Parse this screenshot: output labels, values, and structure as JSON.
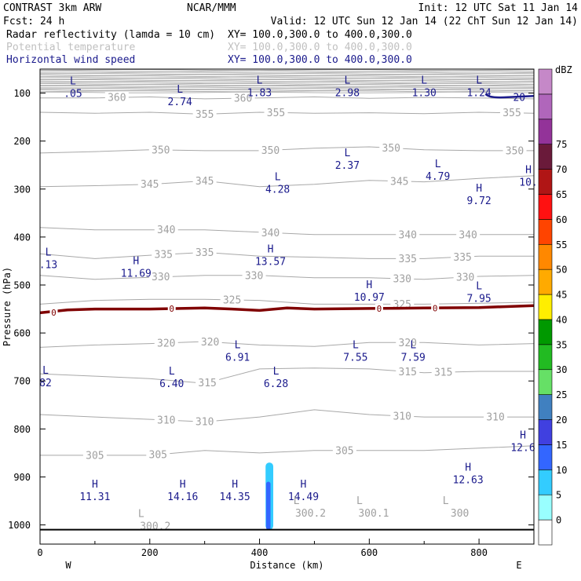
{
  "header": {
    "line1": [
      {
        "key": "model",
        "text": "CONTRAST  3km ARW"
      },
      {
        "key": "org",
        "text": "NCAR/MMM"
      },
      {
        "key": "init",
        "text": "Init: 12 UTC Sat 11 Jan 14"
      }
    ],
    "line2": [
      {
        "key": "fcst",
        "text": "Fcst:   24 h"
      },
      {
        "key": "valid",
        "text": "Valid: 12 UTC Sun 12 Jan 14 (22 ChT Sun 12 Jan 14)"
      }
    ],
    "fields": [
      {
        "name": "Radar reflectivity (lamda = 10 cm)",
        "xy": "XY= 100.0,300.0 to 400.0,300.0",
        "color": "#000000"
      },
      {
        "name": "Potential temperature",
        "xy": "XY= 100.0,300.0 to 400.0,300.0",
        "color": "#c0c0c0"
      },
      {
        "name": "Horizontal wind speed",
        "xy": "XY= 100.0,300.0 to 400.0,300.0",
        "color": "#1a1a8c"
      }
    ]
  },
  "chart_data": {
    "type": "cross-section",
    "xlabel": "Distance (km)",
    "ylabel": "Pressure (hPa)",
    "xlim": [
      0,
      900
    ],
    "ylim": [
      1040,
      50
    ],
    "xticks": [
      0,
      200,
      400,
      600,
      800
    ],
    "yticks": [
      100,
      200,
      300,
      400,
      500,
      600,
      700,
      800,
      900,
      1000
    ],
    "side_labels": {
      "left": "W",
      "right": "E"
    },
    "theta_lines": [
      {
        "value": 360,
        "points": [
          [
            0,
            110
          ],
          [
            100,
            110
          ],
          [
            200,
            108
          ],
          [
            300,
            112
          ],
          [
            400,
            110
          ],
          [
            500,
            108
          ],
          [
            600,
            111
          ],
          [
            700,
            109
          ],
          [
            800,
            110
          ],
          [
            900,
            112
          ]
        ]
      },
      {
        "value": 355,
        "points": [
          [
            0,
            140
          ],
          [
            100,
            142
          ],
          [
            200,
            140
          ],
          [
            300,
            144
          ],
          [
            400,
            140
          ],
          [
            500,
            142
          ],
          [
            600,
            141
          ],
          [
            700,
            143
          ],
          [
            800,
            140
          ],
          [
            900,
            142
          ]
        ]
      },
      {
        "value": 350,
        "points": [
          [
            0,
            225
          ],
          [
            100,
            222
          ],
          [
            200,
            218
          ],
          [
            300,
            220
          ],
          [
            400,
            220
          ],
          [
            500,
            215
          ],
          [
            600,
            212
          ],
          [
            700,
            218
          ],
          [
            800,
            220
          ],
          [
            900,
            220
          ]
        ]
      },
      {
        "value": 345,
        "points": [
          [
            0,
            295
          ],
          [
            100,
            293
          ],
          [
            200,
            290
          ],
          [
            300,
            283
          ],
          [
            400,
            295
          ],
          [
            500,
            290
          ],
          [
            600,
            282
          ],
          [
            700,
            285
          ],
          [
            800,
            278
          ],
          [
            900,
            272
          ]
        ]
      },
      {
        "value": 340,
        "points": [
          [
            0,
            380
          ],
          [
            100,
            385
          ],
          [
            200,
            385
          ],
          [
            300,
            385
          ],
          [
            400,
            390
          ],
          [
            500,
            395
          ],
          [
            600,
            395
          ],
          [
            700,
            395
          ],
          [
            800,
            395
          ],
          [
            900,
            395
          ]
        ]
      },
      {
        "value": 335,
        "points": [
          [
            0,
            435
          ],
          [
            100,
            445
          ],
          [
            200,
            438
          ],
          [
            300,
            432
          ],
          [
            400,
            440
          ],
          [
            500,
            442
          ],
          [
            600,
            445
          ],
          [
            700,
            445
          ],
          [
            800,
            440
          ],
          [
            900,
            440
          ]
        ]
      },
      {
        "value": 330,
        "points": [
          [
            0,
            480
          ],
          [
            100,
            488
          ],
          [
            200,
            484
          ],
          [
            300,
            480
          ],
          [
            400,
            480
          ],
          [
            500,
            485
          ],
          [
            600,
            485
          ],
          [
            700,
            488
          ],
          [
            800,
            482
          ],
          [
            900,
            480
          ]
        ]
      },
      {
        "value": 325,
        "points": [
          [
            0,
            540
          ],
          [
            100,
            532
          ],
          [
            200,
            530
          ],
          [
            300,
            530
          ],
          [
            400,
            532
          ],
          [
            500,
            540
          ],
          [
            600,
            540
          ],
          [
            700,
            540
          ],
          [
            800,
            538
          ],
          [
            900,
            536
          ]
        ]
      },
      {
        "value": 320,
        "points": [
          [
            0,
            630
          ],
          [
            100,
            625
          ],
          [
            200,
            622
          ],
          [
            300,
            618
          ],
          [
            400,
            625
          ],
          [
            500,
            628
          ],
          [
            600,
            620
          ],
          [
            700,
            620
          ],
          [
            800,
            625
          ],
          [
            900,
            622
          ]
        ]
      },
      {
        "value": 315,
        "points": [
          [
            0,
            685
          ],
          [
            100,
            690
          ],
          [
            200,
            695
          ],
          [
            300,
            705
          ],
          [
            400,
            675
          ],
          [
            500,
            673
          ],
          [
            600,
            675
          ],
          [
            700,
            683
          ],
          [
            800,
            680
          ],
          [
            900,
            680
          ]
        ]
      },
      {
        "value": 310,
        "points": [
          [
            0,
            770
          ],
          [
            100,
            775
          ],
          [
            200,
            780
          ],
          [
            300,
            785
          ],
          [
            400,
            775
          ],
          [
            500,
            760
          ],
          [
            600,
            770
          ],
          [
            700,
            775
          ],
          [
            800,
            775
          ],
          [
            900,
            775
          ]
        ]
      },
      {
        "value": 305,
        "points": [
          [
            0,
            855
          ],
          [
            100,
            855
          ],
          [
            200,
            855
          ],
          [
            300,
            845
          ],
          [
            400,
            850
          ],
          [
            500,
            845
          ],
          [
            600,
            845
          ],
          [
            700,
            845
          ],
          [
            800,
            840
          ],
          [
            900,
            835
          ]
        ]
      }
    ],
    "highlight_line": {
      "value": 0,
      "color": "#800000",
      "points": [
        [
          0,
          558
        ],
        [
          50,
          552
        ],
        [
          100,
          550
        ],
        [
          200,
          550
        ],
        [
          300,
          548
        ],
        [
          350,
          550
        ],
        [
          400,
          553
        ],
        [
          450,
          548
        ],
        [
          500,
          550
        ],
        [
          600,
          549
        ],
        [
          700,
          548
        ],
        [
          800,
          547
        ],
        [
          900,
          543
        ]
      ]
    },
    "highlight_labels": [
      {
        "x": 25,
        "p": 557,
        "text": "0"
      },
      {
        "x": 240,
        "p": 549,
        "text": "0"
      },
      {
        "x": 618,
        "p": 549,
        "text": "0"
      },
      {
        "x": 720,
        "p": 548,
        "text": "0"
      }
    ],
    "reflectivity_cells": [
      {
        "x": 418,
        "p_top": 870,
        "p_bottom": 1010,
        "width_km": 14,
        "dbz": 7
      },
      {
        "x": 416,
        "p_top": 910,
        "p_bottom": 1010,
        "width_km": 8,
        "dbz": 12
      }
    ],
    "colorbar": {
      "unit": "dBZ",
      "levels": [
        0,
        5,
        10,
        15,
        20,
        25,
        30,
        35,
        40,
        45,
        50,
        55,
        60,
        65,
        70,
        75
      ],
      "colors": [
        "#ffffff",
        "#99ffff",
        "#33ccff",
        "#3366ff",
        "#4040e0",
        "#4080c0",
        "#66e066",
        "#22bb22",
        "#009900",
        "#ffee00",
        "#ffaa00",
        "#ff8800",
        "#ff4400",
        "#ff1111",
        "#b01515",
        "#6a1a3a",
        "#933399",
        "#b066bb",
        "#c588c8"
      ]
    },
    "wind_labels": [
      {
        "kind": "L",
        "x": 60,
        "p": 95,
        "text": ".05"
      },
      {
        "kind": "L",
        "x": 255,
        "p": 112,
        "text": "2.74"
      },
      {
        "kind": "L",
        "x": 400,
        "p": 93,
        "text": "1.83"
      },
      {
        "kind": "L",
        "x": 560,
        "p": 93,
        "text": "2.98"
      },
      {
        "kind": "L",
        "x": 700,
        "p": 93,
        "text": "1.30"
      },
      {
        "kind": "L",
        "x": 800,
        "p": 93,
        "text": "1.24"
      },
      {
        "kind": "L",
        "x": 560,
        "p": 245,
        "text": "2.37"
      },
      {
        "kind": "L",
        "x": 433,
        "p": 295,
        "text": "4.28"
      },
      {
        "kind": "L",
        "x": 725,
        "p": 268,
        "text": "4.79"
      },
      {
        "kind": "H",
        "x": 800,
        "p": 318,
        "text": "9.72"
      },
      {
        "kind": "H",
        "x": 890,
        "p": 280,
        "text": "10."
      },
      {
        "kind": "H",
        "x": 420,
        "p": 445,
        "text": "13.57"
      },
      {
        "kind": "L",
        "x": 15,
        "p": 452,
        "text": ".13"
      },
      {
        "kind": "H",
        "x": 175,
        "p": 470,
        "text": "11.69"
      },
      {
        "kind": "H",
        "x": 600,
        "p": 520,
        "text": "10.97"
      },
      {
        "kind": "L",
        "x": 800,
        "p": 522,
        "text": "7.95"
      },
      {
        "kind": "L",
        "x": 360,
        "p": 645,
        "text": "6.91"
      },
      {
        "kind": "L",
        "x": 575,
        "p": 645,
        "text": "7.55"
      },
      {
        "kind": "L",
        "x": 680,
        "p": 645,
        "text": "7.59"
      },
      {
        "kind": "L",
        "x": 240,
        "p": 700,
        "text": "6.40"
      },
      {
        "kind": "L",
        "x": 430,
        "p": 700,
        "text": "6.28"
      },
      {
        "kind": "L",
        "x": 10,
        "p": 698,
        "text": "82"
      },
      {
        "kind": "H",
        "x": 880,
        "p": 833,
        "text": "12.6"
      },
      {
        "kind": "H",
        "x": 780,
        "p": 900,
        "text": "12.63"
      },
      {
        "kind": "H",
        "x": 100,
        "p": 935,
        "text": "11.31"
      },
      {
        "kind": "H",
        "x": 260,
        "p": 935,
        "text": "14.16"
      },
      {
        "kind": "H",
        "x": 355,
        "p": 935,
        "text": "14.35"
      },
      {
        "kind": "H",
        "x": 480,
        "p": 935,
        "text": "14.49"
      }
    ],
    "pot_temp_labels": [
      {
        "x": 210,
        "p": 1000,
        "text": "300.2"
      },
      {
        "x": 493,
        "p": 973,
        "text": "300.2"
      },
      {
        "x": 608,
        "p": 973,
        "text": "300.1"
      },
      {
        "x": 765,
        "p": 973,
        "text": "300"
      }
    ],
    "wind_contour": {
      "label": "20",
      "color": "#1a1a8c"
    }
  }
}
